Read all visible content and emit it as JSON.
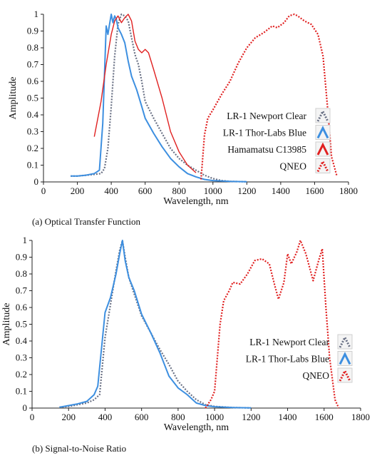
{
  "captions": {
    "a": "(a) Optical Transfer Function",
    "b": "(b) Signal-to-Noise Ratio"
  },
  "chart_data": [
    {
      "type": "line",
      "title": "",
      "xlabel": "Wavelength, nm",
      "ylabel": "Amplitude",
      "xlim": [
        0,
        1800
      ],
      "ylim": [
        0,
        1
      ],
      "xticks": [
        "0",
        "200",
        "400",
        "600",
        "800",
        "1000",
        "1200",
        "1400",
        "1600",
        "1800"
      ],
      "yticks": [
        "0",
        "0.1",
        "0.2",
        "0.3",
        "0.4",
        "0.5",
        "0.6",
        "0.7",
        "0.8",
        "0.9",
        "1"
      ],
      "legend_position": "right",
      "series": [
        {
          "name": "LR-1 Newport Clear",
          "color": "#6a7185",
          "style": "dotted",
          "points": [
            [
              160,
              0.035
            ],
            [
              200,
              0.035
            ],
            [
              250,
              0.04
            ],
            [
              300,
              0.045
            ],
            [
              340,
              0.05
            ],
            [
              360,
              0.08
            ],
            [
              380,
              0.2
            ],
            [
              400,
              0.45
            ],
            [
              420,
              0.75
            ],
            [
              440,
              0.94
            ],
            [
              460,
              1.0
            ],
            [
              480,
              0.99
            ],
            [
              500,
              0.96
            ],
            [
              520,
              0.86
            ],
            [
              540,
              0.76
            ],
            [
              560,
              0.7
            ],
            [
              580,
              0.6
            ],
            [
              600,
              0.48
            ],
            [
              650,
              0.38
            ],
            [
              700,
              0.29
            ],
            [
              750,
              0.2
            ],
            [
              800,
              0.14
            ],
            [
              850,
              0.1
            ],
            [
              900,
              0.07
            ],
            [
              950,
              0.04
            ],
            [
              1000,
              0.02
            ],
            [
              1050,
              0.008
            ],
            [
              1100,
              0.003
            ],
            [
              1200,
              0.001
            ]
          ]
        },
        {
          "name": "LR-1 Thor-Labs Blue",
          "color": "#3d8fe0",
          "style": "solid",
          "points": [
            [
              160,
              0.035
            ],
            [
              200,
              0.035
            ],
            [
              250,
              0.04
            ],
            [
              300,
              0.05
            ],
            [
              330,
              0.07
            ],
            [
              350,
              0.35
            ],
            [
              370,
              0.93
            ],
            [
              380,
              0.88
            ],
            [
              390,
              0.94
            ],
            [
              400,
              1.0
            ],
            [
              410,
              0.95
            ],
            [
              420,
              0.99
            ],
            [
              430,
              0.97
            ],
            [
              440,
              0.92
            ],
            [
              460,
              0.88
            ],
            [
              480,
              0.83
            ],
            [
              500,
              0.72
            ],
            [
              520,
              0.63
            ],
            [
              550,
              0.55
            ],
            [
              580,
              0.45
            ],
            [
              600,
              0.38
            ],
            [
              650,
              0.29
            ],
            [
              700,
              0.21
            ],
            [
              750,
              0.14
            ],
            [
              800,
              0.09
            ],
            [
              850,
              0.05
            ],
            [
              900,
              0.03
            ],
            [
              950,
              0.015
            ],
            [
              1000,
              0.008
            ],
            [
              1100,
              0.003
            ],
            [
              1200,
              0.001
            ]
          ]
        },
        {
          "name": "Hamamatsu C13985",
          "color": "#e02020",
          "style": "solid",
          "points": [
            [
              300,
              0.27
            ],
            [
              340,
              0.48
            ],
            [
              370,
              0.7
            ],
            [
              400,
              0.88
            ],
            [
              420,
              0.96
            ],
            [
              440,
              0.99
            ],
            [
              460,
              0.95
            ],
            [
              480,
              0.98
            ],
            [
              500,
              1.0
            ],
            [
              520,
              0.96
            ],
            [
              540,
              0.84
            ],
            [
              560,
              0.79
            ],
            [
              580,
              0.77
            ],
            [
              600,
              0.79
            ],
            [
              620,
              0.77
            ],
            [
              650,
              0.67
            ],
            [
              700,
              0.5
            ],
            [
              750,
              0.3
            ],
            [
              800,
              0.18
            ],
            [
              850,
              0.1
            ],
            [
              900,
              0.055
            ]
          ]
        },
        {
          "name": "QNEO",
          "color": "#e02020",
          "style": "dotted",
          "points": [
            [
              930,
              0.015
            ],
            [
              950,
              0.28
            ],
            [
              970,
              0.38
            ],
            [
              1000,
              0.43
            ],
            [
              1050,
              0.52
            ],
            [
              1100,
              0.6
            ],
            [
              1150,
              0.71
            ],
            [
              1200,
              0.8
            ],
            [
              1250,
              0.86
            ],
            [
              1300,
              0.89
            ],
            [
              1350,
              0.93
            ],
            [
              1380,
              0.92
            ],
            [
              1420,
              0.95
            ],
            [
              1450,
              0.99
            ],
            [
              1480,
              1.0
            ],
            [
              1500,
              0.99
            ],
            [
              1540,
              0.96
            ],
            [
              1580,
              0.94
            ],
            [
              1620,
              0.88
            ],
            [
              1650,
              0.75
            ],
            [
              1680,
              0.4
            ],
            [
              1700,
              0.15
            ],
            [
              1730,
              0.04
            ]
          ]
        }
      ]
    },
    {
      "type": "line",
      "title": "",
      "xlabel": "Wavelength, nm",
      "ylabel": "Amplitude",
      "xlim": [
        0,
        1800
      ],
      "ylim": [
        0,
        1
      ],
      "xticks": [
        "0",
        "200",
        "400",
        "600",
        "800",
        "1000",
        "1200",
        "1400",
        "1600",
        "1800"
      ],
      "yticks": [
        "0",
        "0.1",
        "0.2",
        "0.3",
        "0.4",
        "0.5",
        "0.6",
        "0.7",
        "0.8",
        "0.9",
        "1"
      ],
      "legend_position": "right",
      "series": [
        {
          "name": "LR-1 Newport Clear",
          "color": "#6a7185",
          "style": "dotted",
          "points": [
            [
              150,
              0.005
            ],
            [
              200,
              0.01
            ],
            [
              250,
              0.02
            ],
            [
              300,
              0.03
            ],
            [
              340,
              0.05
            ],
            [
              370,
              0.08
            ],
            [
              400,
              0.42
            ],
            [
              430,
              0.62
            ],
            [
              460,
              0.82
            ],
            [
              480,
              0.94
            ],
            [
              495,
              1.0
            ],
            [
              510,
              0.9
            ],
            [
              530,
              0.78
            ],
            [
              560,
              0.68
            ],
            [
              600,
              0.55
            ],
            [
              650,
              0.45
            ],
            [
              700,
              0.35
            ],
            [
              750,
              0.26
            ],
            [
              800,
              0.16
            ],
            [
              850,
              0.1
            ],
            [
              900,
              0.05
            ],
            [
              950,
              0.02
            ],
            [
              1000,
              0.01
            ],
            [
              1100,
              0.003
            ],
            [
              1200,
              0.001
            ]
          ]
        },
        {
          "name": "LR-1 Thor-Labs Blue",
          "color": "#3d8fe0",
          "style": "solid",
          "points": [
            [
              150,
              0.005
            ],
            [
              200,
              0.015
            ],
            [
              250,
              0.025
            ],
            [
              300,
              0.04
            ],
            [
              340,
              0.08
            ],
            [
              360,
              0.13
            ],
            [
              380,
              0.35
            ],
            [
              400,
              0.57
            ],
            [
              430,
              0.66
            ],
            [
              460,
              0.8
            ],
            [
              480,
              0.92
            ],
            [
              495,
              1.0
            ],
            [
              510,
              0.88
            ],
            [
              530,
              0.78
            ],
            [
              560,
              0.7
            ],
            [
              600,
              0.56
            ],
            [
              650,
              0.45
            ],
            [
              700,
              0.33
            ],
            [
              750,
              0.19
            ],
            [
              800,
              0.12
            ],
            [
              850,
              0.08
            ],
            [
              900,
              0.03
            ],
            [
              950,
              0.015
            ],
            [
              1000,
              0.008
            ],
            [
              1100,
              0.003
            ],
            [
              1200,
              0.001
            ]
          ]
        },
        {
          "name": "QNEO",
          "color": "#e02020",
          "style": "dotted",
          "points": [
            [
              950,
              0.0
            ],
            [
              980,
              0.05
            ],
            [
              1000,
              0.1
            ],
            [
              1030,
              0.5
            ],
            [
              1050,
              0.64
            ],
            [
              1080,
              0.7
            ],
            [
              1100,
              0.75
            ],
            [
              1140,
              0.74
            ],
            [
              1180,
              0.8
            ],
            [
              1220,
              0.88
            ],
            [
              1260,
              0.89
            ],
            [
              1300,
              0.86
            ],
            [
              1330,
              0.73
            ],
            [
              1350,
              0.65
            ],
            [
              1380,
              0.75
            ],
            [
              1400,
              0.92
            ],
            [
              1420,
              0.86
            ],
            [
              1450,
              0.93
            ],
            [
              1470,
              1.0
            ],
            [
              1500,
              0.92
            ],
            [
              1540,
              0.76
            ],
            [
              1570,
              0.88
            ],
            [
              1590,
              0.95
            ],
            [
              1610,
              0.6
            ],
            [
              1630,
              0.3
            ],
            [
              1660,
              0.05
            ],
            [
              1680,
              0.0
            ]
          ]
        }
      ]
    }
  ]
}
